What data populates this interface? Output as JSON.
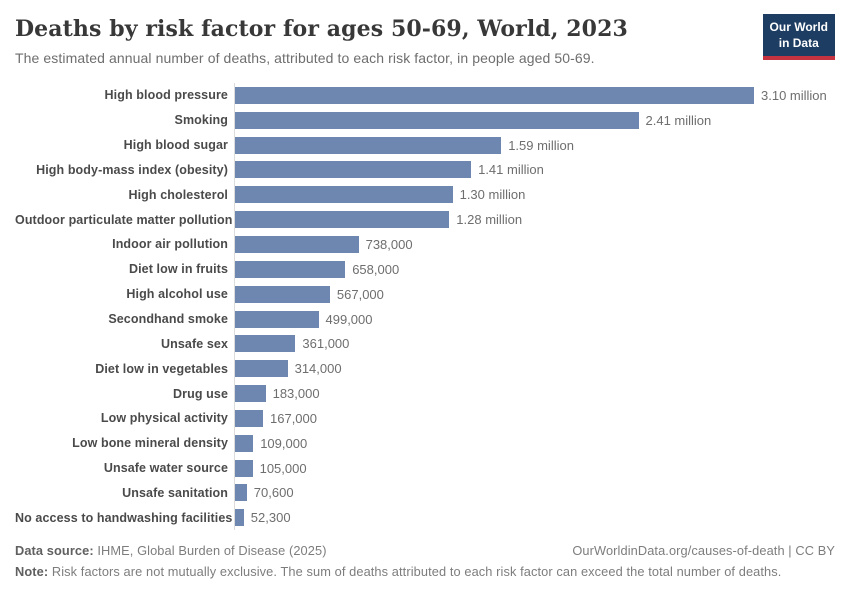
{
  "header": {
    "title": "Deaths by risk factor for ages 50-69, World, 2023",
    "subtitle": "The estimated annual number of deaths, attributed to each risk factor, in people aged 50-69.",
    "logo": {
      "line1": "Our World",
      "line2": "in Data"
    }
  },
  "chart_data": {
    "type": "bar",
    "orientation": "horizontal",
    "title": "Deaths by risk factor for ages 50-69, World, 2023",
    "xlabel": "",
    "ylabel": "",
    "xlim": [
      0,
      3100000
    ],
    "grid": false,
    "legend": false,
    "bar_color": "#6e87b0",
    "categories": [
      "High blood pressure",
      "Smoking",
      "High blood sugar",
      "High body-mass index (obesity)",
      "High cholesterol",
      "Outdoor particulate matter pollution",
      "Indoor air pollution",
      "Diet low in fruits",
      "High alcohol use",
      "Secondhand smoke",
      "Unsafe sex",
      "Diet low in vegetables",
      "Drug use",
      "Low physical activity",
      "Low bone mineral density",
      "Unsafe water source",
      "Unsafe sanitation",
      "No access to handwashing facilities"
    ],
    "values": [
      3100000,
      2410000,
      1590000,
      1410000,
      1300000,
      1280000,
      738000,
      658000,
      567000,
      499000,
      361000,
      314000,
      183000,
      167000,
      109000,
      105000,
      70600,
      52300
    ],
    "value_labels": [
      "3.10 million",
      "2.41 million",
      "1.59 million",
      "1.41 million",
      "1.30 million",
      "1.28 million",
      "738,000",
      "658,000",
      "567,000",
      "499,000",
      "361,000",
      "314,000",
      "183,000",
      "167,000",
      "109,000",
      "105,000",
      "70,600",
      "52,300"
    ]
  },
  "footer": {
    "datasource_label": "Data source:",
    "datasource_text": " IHME, Global Burden of Disease (2025)",
    "attribution": "OurWorldinData.org/causes-of-death | CC BY",
    "note_label": "Note:",
    "note_text": " Risk factors are not mutually exclusive. The sum of deaths attributed to each risk factor can exceed the total number of deaths."
  },
  "colors": {
    "bar": "#6e87b0",
    "logo_bg": "#1d3d63",
    "logo_accent": "#c4333f",
    "title_text": "#383838",
    "axis_line": "#dcdcdc"
  }
}
